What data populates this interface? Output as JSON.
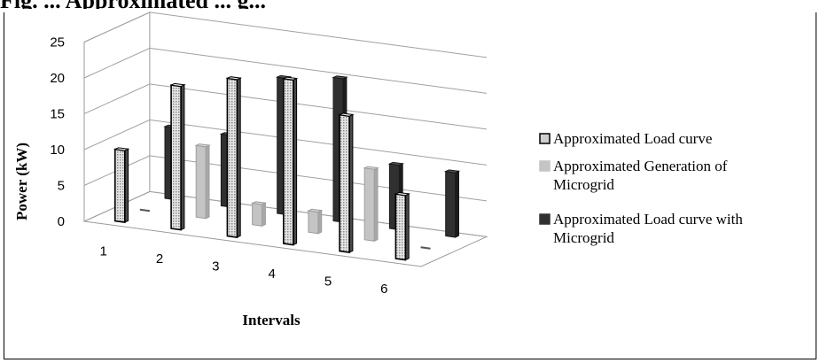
{
  "header": {
    "text": "Fig. ... Approximated ... g..."
  },
  "chart_data": {
    "type": "bar",
    "variant": "3d-clustered-depth",
    "xlabel": "Intervals",
    "ylabel": "Power (kW)",
    "categories": [
      "1",
      "2",
      "3",
      "4",
      "5",
      "6"
    ],
    "yticks": [
      "0",
      "5",
      "10",
      "15",
      "20",
      "25"
    ],
    "ylim": [
      0,
      25
    ],
    "grid": true,
    "legend_position": "right",
    "series": [
      {
        "name": "Approximated Load curve",
        "values": [
          10,
          20,
          22,
          23,
          19,
          9
        ],
        "color": "#bdbdbd",
        "pattern": "dotted"
      },
      {
        "name": "Approximated Generation of Microgrid",
        "values": [
          0,
          10,
          3,
          3,
          10,
          0
        ],
        "color": "#c4c4c4",
        "pattern": "solid"
      },
      {
        "name": "Approximated Load curve with Microgrid",
        "values": [
          10,
          10,
          19,
          20,
          9,
          9
        ],
        "color": "#303030",
        "pattern": "solid"
      }
    ]
  }
}
